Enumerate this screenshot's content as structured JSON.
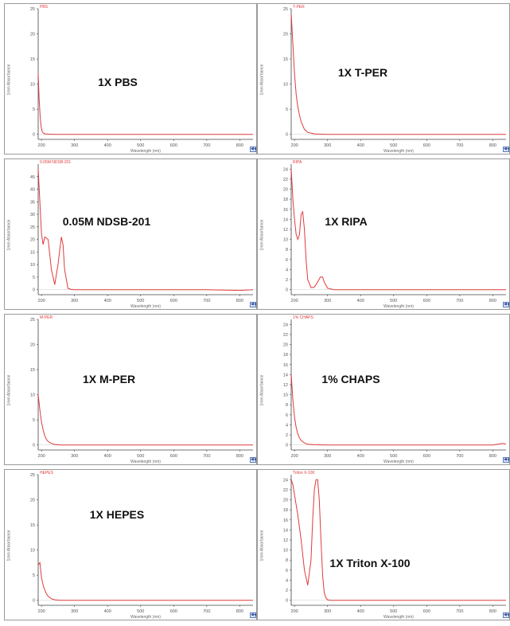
{
  "chart_data": [
    {
      "type": "line",
      "title": "1X PBS",
      "series": [
        {
          "name": "PBS",
          "x": [
            190,
            193,
            196,
            199,
            202,
            205,
            210,
            220,
            240,
            300,
            400,
            500,
            600,
            700,
            800,
            840
          ],
          "y": [
            12,
            7,
            3.5,
            1.5,
            0.6,
            0.3,
            0.1,
            0.05,
            0,
            0,
            0,
            0,
            0,
            0,
            0,
            0
          ]
        }
      ],
      "xlabel": "Wavelength (nm)",
      "ylabel": "1mm Absorbance",
      "xlim": [
        190,
        840
      ],
      "ylim": [
        -1,
        25
      ],
      "x_ticks": [
        200,
        300,
        400,
        500,
        600,
        700,
        800
      ],
      "y_ticks": [
        0,
        5,
        10,
        15,
        20,
        25
      ]
    },
    {
      "type": "line",
      "title": "1X T-PER",
      "series": [
        {
          "name": "T-PER",
          "x": [
            190,
            195,
            200,
            205,
            210,
            215,
            220,
            230,
            240,
            260,
            300,
            400,
            500,
            600,
            700,
            800,
            840
          ],
          "y": [
            24,
            18,
            12,
            8,
            5.5,
            3.8,
            2.5,
            1,
            0.4,
            0.1,
            0,
            0,
            0,
            0,
            0,
            0,
            0
          ]
        }
      ],
      "xlabel": "Wavelength (nm)",
      "ylabel": "1mm Absorbance",
      "xlim": [
        190,
        840
      ],
      "ylim": [
        -1,
        25
      ],
      "x_ticks": [
        200,
        300,
        400,
        500,
        600,
        700,
        800
      ],
      "y_ticks": [
        0,
        5,
        10,
        15,
        20,
        25
      ]
    },
    {
      "type": "line",
      "title": "0.05M NDSB-201",
      "series": [
        {
          "name": "0.05M NDSB-201",
          "x": [
            190,
            195,
            200,
            205,
            210,
            220,
            230,
            240,
            250,
            260,
            265,
            270,
            280,
            290,
            300,
            400,
            500,
            600,
            700,
            800,
            840
          ],
          "y": [
            48,
            35,
            22,
            18,
            21,
            20,
            8,
            2,
            10,
            21,
            18,
            8,
            0.5,
            0.1,
            0,
            0,
            0,
            0,
            0,
            -0.3,
            0
          ]
        }
      ],
      "xlabel": "Wavelength (nm)",
      "ylabel": "1mm Absorbance",
      "xlim": [
        190,
        840
      ],
      "ylim": [
        -2,
        50
      ],
      "x_ticks": [
        200,
        300,
        400,
        500,
        600,
        700,
        800
      ],
      "y_ticks": [
        0,
        5,
        10,
        15,
        20,
        25,
        30,
        35,
        40,
        45
      ]
    },
    {
      "type": "line",
      "title": "1X RIPA",
      "series": [
        {
          "name": "RIPA",
          "x": [
            190,
            195,
            200,
            205,
            210,
            215,
            220,
            225,
            230,
            235,
            240,
            250,
            260,
            270,
            278,
            285,
            290,
            300,
            320,
            400,
            500,
            600,
            700,
            800,
            840
          ],
          "y": [
            24,
            18,
            14,
            11,
            10,
            11,
            15,
            15.5,
            12,
            6,
            2,
            0.4,
            0.5,
            1.5,
            2.5,
            2.5,
            1.5,
            0.3,
            0,
            0,
            0,
            0,
            0,
            0,
            0
          ]
        }
      ],
      "xlabel": "Wavelength (nm)",
      "ylabel": "1mm Absorbance",
      "xlim": [
        190,
        840
      ],
      "ylim": [
        -1,
        25
      ],
      "x_ticks": [
        200,
        300,
        400,
        500,
        600,
        700,
        800
      ],
      "y_ticks": [
        0,
        2,
        4,
        6,
        8,
        10,
        12,
        14,
        16,
        18,
        20,
        22,
        24
      ]
    },
    {
      "type": "line",
      "title": "1X M-PER",
      "series": [
        {
          "name": "M-PER",
          "x": [
            190,
            195,
            200,
            205,
            210,
            215,
            220,
            230,
            240,
            260,
            300,
            400,
            500,
            600,
            700,
            800,
            840
          ],
          "y": [
            10,
            7,
            4.5,
            3,
            1.8,
            1.1,
            0.7,
            0.3,
            0.1,
            0,
            0,
            0,
            0,
            0,
            0,
            0,
            0
          ]
        }
      ],
      "xlabel": "Wavelength (nm)",
      "ylabel": "1mm Absorbance",
      "xlim": [
        190,
        840
      ],
      "ylim": [
        -1,
        25
      ],
      "x_ticks": [
        200,
        300,
        400,
        500,
        600,
        700,
        800
      ],
      "y_ticks": [
        0,
        5,
        10,
        15,
        20,
        25
      ]
    },
    {
      "type": "line",
      "title": "1% CHAPS",
      "series": [
        {
          "name": "1% CHAPS",
          "x": [
            190,
            195,
            200,
            205,
            210,
            215,
            220,
            230,
            240,
            260,
            300,
            400,
            500,
            600,
            700,
            800,
            830,
            840
          ],
          "y": [
            14,
            9,
            5.5,
            3.5,
            2.2,
            1.4,
            0.9,
            0.4,
            0.15,
            0.05,
            0,
            0,
            0,
            0,
            0,
            0,
            0.3,
            0.2
          ]
        }
      ],
      "xlabel": "Wavelength (nm)",
      "ylabel": "1mm Absorbance",
      "xlim": [
        190,
        840
      ],
      "ylim": [
        -1,
        25
      ],
      "x_ticks": [
        200,
        300,
        400,
        500,
        600,
        700,
        800
      ],
      "y_ticks": [
        0,
        2,
        4,
        6,
        8,
        10,
        12,
        14,
        16,
        18,
        20,
        22,
        24
      ]
    },
    {
      "type": "line",
      "title": "1X HEPES",
      "series": [
        {
          "name": "HEPES",
          "x": [
            190,
            195,
            200,
            205,
            210,
            215,
            220,
            230,
            240,
            260,
            300,
            400,
            500,
            600,
            700,
            800,
            840
          ],
          "y": [
            7,
            7.5,
            4.5,
            3,
            2,
            1.3,
            0.8,
            0.3,
            0.1,
            0,
            0,
            0,
            0,
            0,
            0,
            0,
            0
          ]
        }
      ],
      "xlabel": "Wavelength (nm)",
      "ylabel": "1mm Absorbance",
      "xlim": [
        190,
        840
      ],
      "ylim": [
        -1,
        25
      ],
      "x_ticks": [
        200,
        300,
        400,
        500,
        600,
        700,
        800
      ],
      "y_ticks": [
        0,
        5,
        10,
        15,
        20,
        25
      ]
    },
    {
      "type": "line",
      "title": "1X Triton X-100",
      "series": [
        {
          "name": "Triton X-100",
          "x": [
            190,
            195,
            200,
            205,
            210,
            220,
            230,
            240,
            250,
            255,
            260,
            265,
            270,
            275,
            280,
            285,
            290,
            295,
            300,
            310,
            400,
            500,
            600,
            700,
            800,
            840
          ],
          "y": [
            24,
            23,
            21,
            19,
            17,
            12,
            6,
            3,
            8,
            16,
            22,
            24,
            24,
            20,
            12,
            5,
            1.5,
            0.5,
            0.1,
            0,
            0,
            0,
            0,
            0,
            0,
            0
          ]
        }
      ],
      "xlabel": "Wavelength (nm)",
      "ylabel": "1mm Absorbance",
      "xlim": [
        190,
        840
      ],
      "ylim": [
        -1,
        25
      ],
      "x_ticks": [
        200,
        300,
        400,
        500,
        600,
        700,
        800
      ],
      "y_ticks": [
        0,
        2,
        4,
        6,
        8,
        10,
        12,
        14,
        16,
        18,
        20,
        22,
        24
      ]
    }
  ],
  "colors": {
    "line": "#e03a3a",
    "axis": "#444444",
    "tick_text": "#555555",
    "frame": "#9a9a9a"
  },
  "corner_button_icon": "zoom-icon",
  "corner_button_text": "◀◀"
}
